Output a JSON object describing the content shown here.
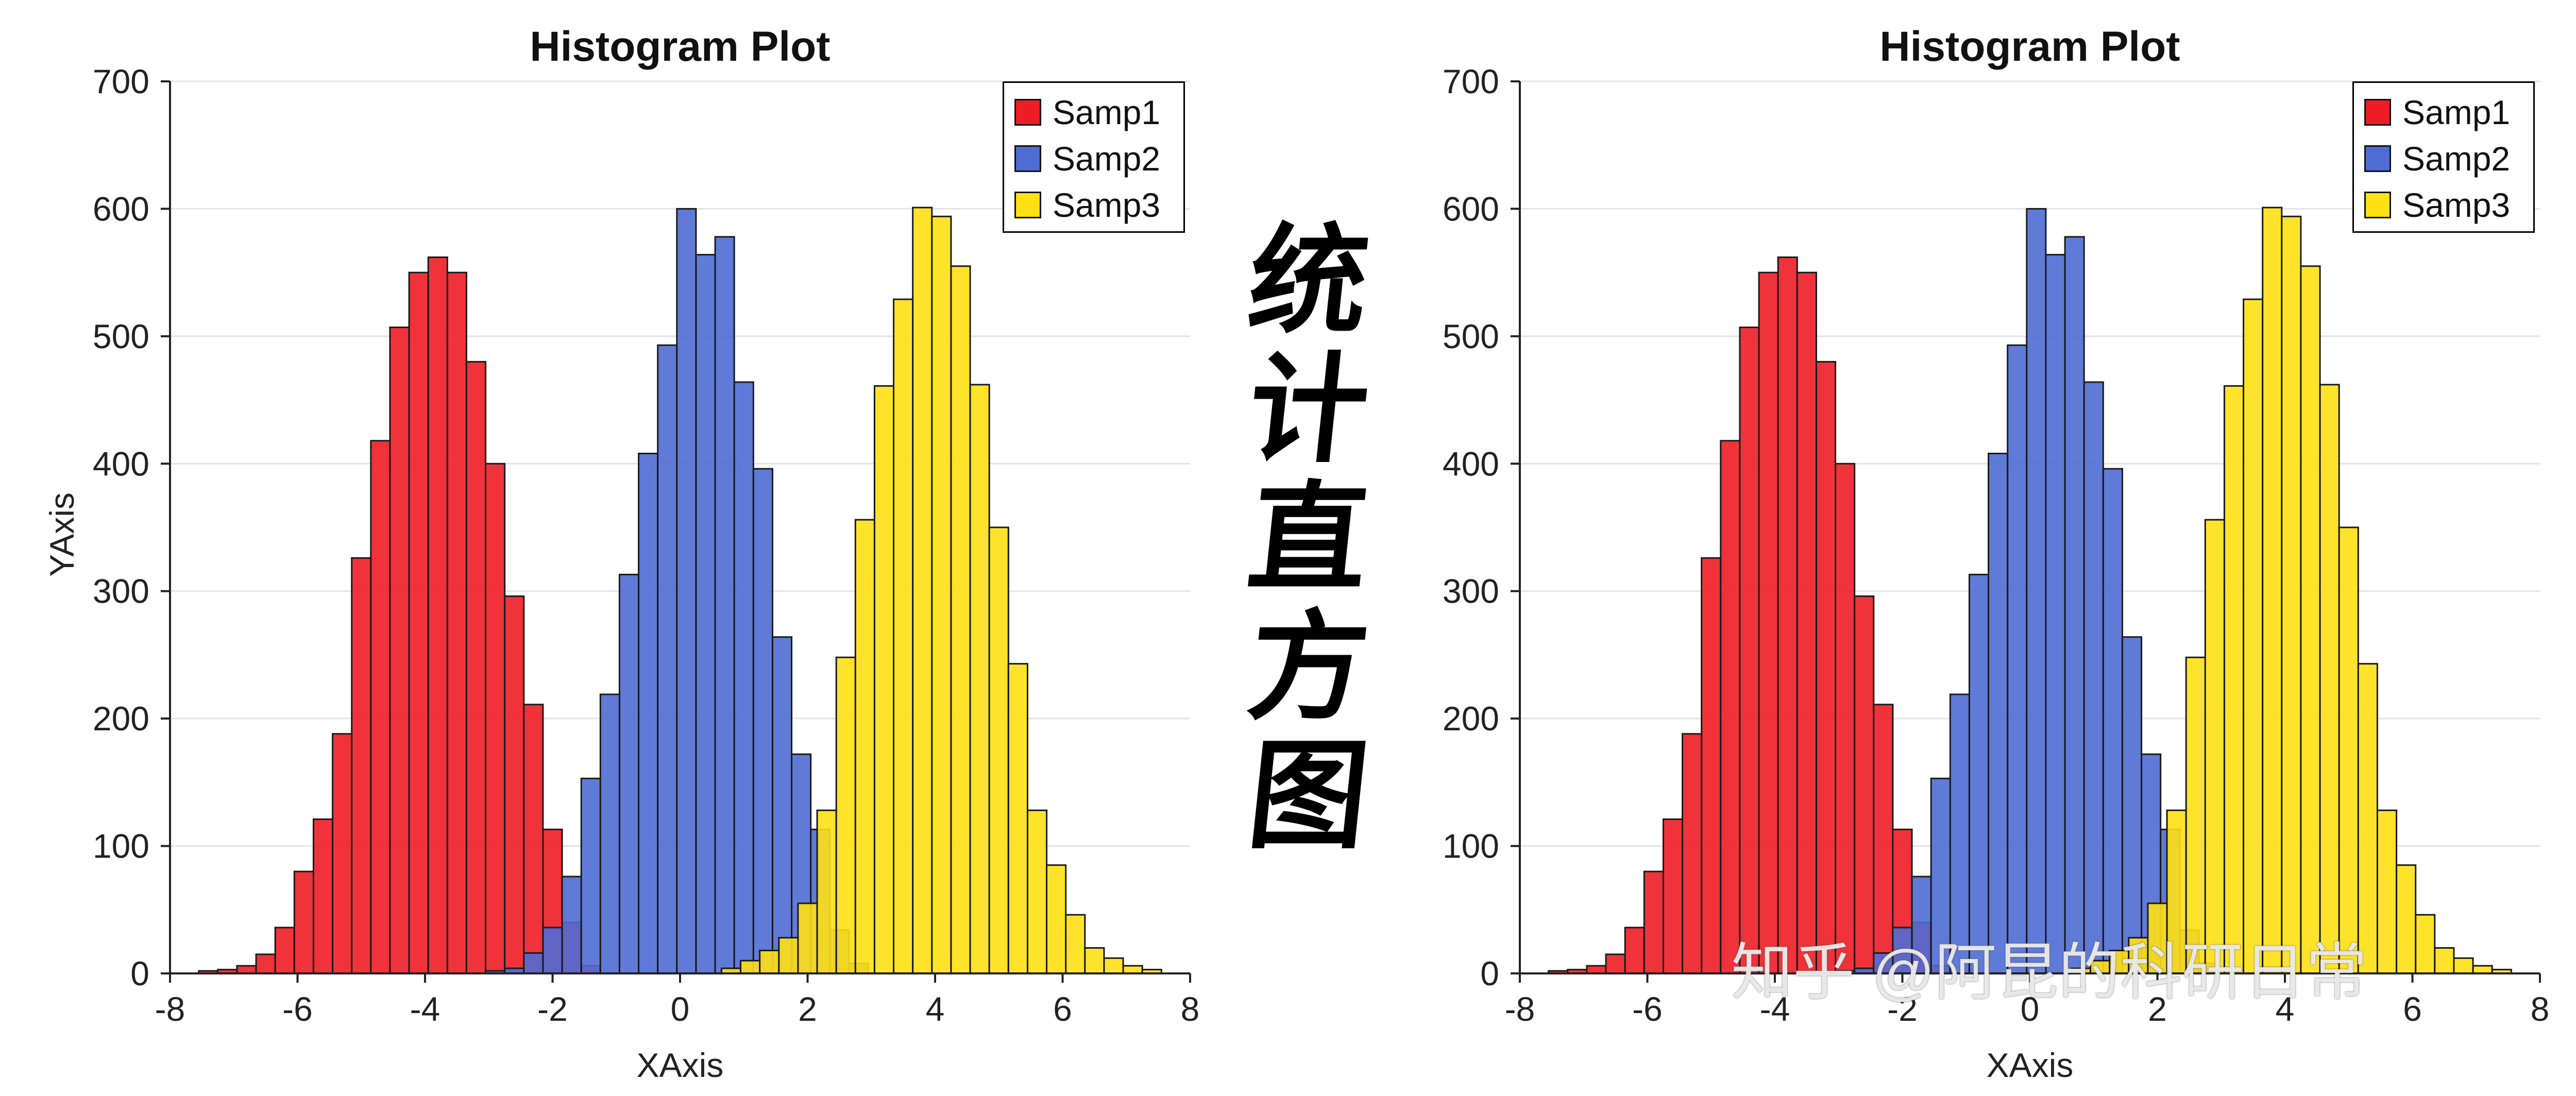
{
  "calligraphy": {
    "c1": "统",
    "c2": "计",
    "c3": "直",
    "c4": "方",
    "c5": "图"
  },
  "watermark": "知乎 @阿昆的科研日常",
  "colors": {
    "samp1": "#EE1C25",
    "samp2": "#4F6BD4",
    "samp3": "#FFE014"
  },
  "charts": [
    {
      "title": "Histogram Plot",
      "xlabel": "XAxis",
      "ylabel": "YAxis",
      "legend": [
        "Samp1",
        "Samp2",
        "Samp3"
      ],
      "x_ticks": [
        "-8",
        "-6",
        "-4",
        "-2",
        "0",
        "2",
        "4",
        "6",
        "8"
      ],
      "y_ticks": [
        "0",
        "100",
        "200",
        "300",
        "400",
        "500",
        "600",
        "700"
      ]
    },
    {
      "title": "Histogram Plot",
      "xlabel": "XAxis",
      "ylabel": "",
      "legend": [
        "Samp1",
        "Samp2",
        "Samp3"
      ],
      "x_ticks": [
        "-8",
        "-6",
        "-4",
        "-2",
        "0",
        "2",
        "4",
        "6",
        "8"
      ],
      "y_ticks": [
        "0",
        "100",
        "200",
        "300",
        "400",
        "500",
        "600",
        "700"
      ]
    }
  ],
  "chart_data": [
    {
      "type": "bar",
      "title": "Histogram Plot",
      "xlabel": "XAxis",
      "ylabel": "YAxis",
      "xlim": [
        -8,
        8
      ],
      "ylim": [
        0,
        700
      ],
      "grid": "horizontal",
      "legend_position": "top-right",
      "bin_width": 0.3,
      "series": [
        {
          "name": "Samp1",
          "color": "#EE1C25",
          "x": [
            -7.4,
            -7.1,
            -6.8,
            -6.5,
            -6.2,
            -5.9,
            -5.6,
            -5.3,
            -5.0,
            -4.7,
            -4.4,
            -4.1,
            -3.8,
            -3.5,
            -3.2,
            -2.9,
            -2.6,
            -2.3,
            -2.0,
            -1.7,
            -1.4
          ],
          "values": [
            2,
            3,
            6,
            15,
            36,
            80,
            121,
            188,
            326,
            418,
            507,
            550,
            562,
            550,
            480,
            400,
            296,
            211,
            113,
            40,
            6
          ]
        },
        {
          "name": "Samp2",
          "color": "#4F6BD4",
          "x": [
            -2.9,
            -2.6,
            -2.3,
            -2.0,
            -1.7,
            -1.4,
            -1.1,
            -0.8,
            -0.5,
            -0.2,
            0.1,
            0.4,
            0.7,
            1.0,
            1.3,
            1.6,
            1.9,
            2.2,
            2.5,
            2.8
          ],
          "values": [
            2,
            4,
            16,
            36,
            76,
            153,
            219,
            313,
            408,
            493,
            600,
            564,
            578,
            464,
            396,
            264,
            172,
            113,
            34,
            8
          ]
        },
        {
          "name": "Samp3",
          "color": "#FFE014",
          "x": [
            0.8,
            1.1,
            1.4,
            1.7,
            2.0,
            2.3,
            2.6,
            2.9,
            3.2,
            3.5,
            3.8,
            4.1,
            4.4,
            4.7,
            5.0,
            5.3,
            5.6,
            5.9,
            6.2,
            6.5,
            6.8,
            7.1,
            7.4
          ],
          "values": [
            4,
            10,
            18,
            28,
            55,
            128,
            248,
            356,
            461,
            529,
            601,
            594,
            555,
            462,
            350,
            243,
            128,
            85,
            46,
            20,
            12,
            6,
            3
          ]
        }
      ]
    },
    {
      "type": "bar",
      "title": "Histogram Plot",
      "xlabel": "XAxis",
      "ylabel": "",
      "xlim": [
        -8,
        8
      ],
      "ylim": [
        0,
        700
      ],
      "grid": "horizontal",
      "legend_position": "top-right",
      "bin_width": 0.3,
      "series": [
        {
          "name": "Samp1",
          "color": "#EE1C25",
          "x": [
            -7.4,
            -7.1,
            -6.8,
            -6.5,
            -6.2,
            -5.9,
            -5.6,
            -5.3,
            -5.0,
            -4.7,
            -4.4,
            -4.1,
            -3.8,
            -3.5,
            -3.2,
            -2.9,
            -2.6,
            -2.3,
            -2.0,
            -1.7,
            -1.4
          ],
          "values": [
            2,
            3,
            6,
            15,
            36,
            80,
            121,
            188,
            326,
            418,
            507,
            550,
            562,
            550,
            480,
            400,
            296,
            211,
            113,
            40,
            6
          ]
        },
        {
          "name": "Samp2",
          "color": "#4F6BD4",
          "x": [
            -2.9,
            -2.6,
            -2.3,
            -2.0,
            -1.7,
            -1.4,
            -1.1,
            -0.8,
            -0.5,
            -0.2,
            0.1,
            0.4,
            0.7,
            1.0,
            1.3,
            1.6,
            1.9,
            2.2,
            2.5,
            2.8
          ],
          "values": [
            2,
            4,
            16,
            36,
            76,
            153,
            219,
            313,
            408,
            493,
            600,
            564,
            578,
            464,
            396,
            264,
            172,
            113,
            34,
            8
          ]
        },
        {
          "name": "Samp3",
          "color": "#FFE014",
          "x": [
            0.8,
            1.1,
            1.4,
            1.7,
            2.0,
            2.3,
            2.6,
            2.9,
            3.2,
            3.5,
            3.8,
            4.1,
            4.4,
            4.7,
            5.0,
            5.3,
            5.6,
            5.9,
            6.2,
            6.5,
            6.8,
            7.1,
            7.4
          ],
          "values": [
            4,
            10,
            18,
            28,
            55,
            128,
            248,
            356,
            461,
            529,
            601,
            594,
            555,
            462,
            350,
            243,
            128,
            85,
            46,
            20,
            12,
            6,
            3
          ]
        }
      ]
    }
  ]
}
